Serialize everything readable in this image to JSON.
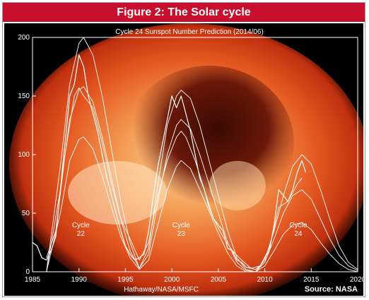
{
  "figure_title": "Figure 2: The Solar cycle",
  "source": "Source: NASA",
  "credit": "Hathaway/NASA/MSFC",
  "chart_data": {
    "type": "line",
    "title": "Cycle 24 Sunspot Number Prediction (2014/06)",
    "xlabel": "",
    "ylabel": "",
    "xlim": [
      1985,
      2020
    ],
    "ylim": [
      0,
      200
    ],
    "x_ticks": [
      "1985",
      "1990",
      "1995",
      "2000",
      "2005",
      "2010",
      "2015",
      "2020"
    ],
    "y_ticks": [
      "0",
      "50",
      "100",
      "150",
      "200"
    ],
    "grid": false,
    "annotations": [
      {
        "text": "Cycle 22",
        "x": 1990.2,
        "y": 20
      },
      {
        "text": "Cycle 23",
        "x": 2001.0,
        "y": 20
      },
      {
        "text": "Cycle 24",
        "x": 2013.6,
        "y": 20
      }
    ],
    "background": "Sun X-ray image (orange/red)",
    "colors": {
      "lines": "#ffffff",
      "banner": "#c8102e",
      "sun": "#e8451a"
    },
    "series": [
      {
        "role": "observed monthly",
        "x": [
          1985.0,
          1985.5,
          1986.0,
          1986.5,
          1987.0,
          1987.5,
          1988.0,
          1988.5,
          1989.0,
          1989.5,
          1990.0,
          1990.5,
          1991.0,
          1991.5,
          1992.0,
          1992.5,
          1993.0,
          1993.5,
          1994.0,
          1994.5,
          1995.0,
          1995.5,
          1996.0,
          1996.5,
          1997.0,
          1997.5,
          1998.0,
          1998.5,
          1999.0,
          1999.5,
          2000.0,
          2000.5,
          2001.0,
          2001.5,
          2002.0,
          2002.5,
          2003.0,
          2003.5,
          2004.0,
          2004.5,
          2005.0,
          2005.5,
          2006.0,
          2006.5,
          2007.0,
          2007.5,
          2008.0,
          2008.5,
          2009.0,
          2009.5,
          2010.0,
          2010.5,
          2011.0,
          2011.5,
          2012.0,
          2012.5,
          2013.0,
          2013.5,
          2014.0,
          2014.4
        ],
        "values": [
          25,
          22,
          12,
          10,
          18,
          30,
          70,
          110,
          150,
          160,
          185,
          175,
          150,
          135,
          120,
          100,
          80,
          65,
          50,
          35,
          22,
          15,
          10,
          12,
          15,
          35,
          65,
          90,
          110,
          130,
          150,
          140,
          150,
          135,
          120,
          100,
          80,
          70,
          55,
          45,
          40,
          35,
          20,
          18,
          10,
          8,
          4,
          3,
          2,
          5,
          12,
          18,
          40,
          70,
          65,
          60,
          70,
          85,
          95,
          85
        ]
      },
      {
        "role": "smoothed",
        "x": [
          1986.5,
          1987.5,
          1988.5,
          1989.5,
          1990.0,
          1990.5,
          1991.5,
          1992.5,
          1993.5,
          1994.5,
          1995.5,
          1996.5,
          1997.5,
          1998.5,
          1999.5,
          2000.5,
          2001.0,
          2001.5,
          2002.5,
          2003.5,
          2004.5,
          2005.5,
          2006.5,
          2007.5,
          2008.5,
          2009.5,
          2010.5,
          2011.5,
          2012.5,
          2013.5,
          2014.0
        ],
        "values": [
          12,
          35,
          100,
          150,
          157,
          150,
          140,
          110,
          75,
          45,
          28,
          10,
          25,
          65,
          95,
          115,
          120,
          115,
          95,
          70,
          45,
          30,
          18,
          10,
          3,
          5,
          20,
          55,
          60,
          75,
          80
        ]
      },
      {
        "role": "prediction upper",
        "x": [
          1986.5,
          1988.0,
          1989.0,
          1990.0,
          1990.5,
          1991.5,
          1992.5,
          1993.5,
          1994.5,
          1995.5,
          1996.5,
          1997.5,
          1998.5,
          1999.5,
          2000.5,
          2001.0,
          2002.0,
          2003.0,
          2004.0,
          2005.0,
          2006.0,
          2007.0,
          2008.0,
          2009.0,
          2010.0,
          2011.0,
          2012.0,
          2013.0,
          2014.0,
          2015.0,
          2016.0,
          2017.0,
          2018.0,
          2019.0,
          2020.0
        ],
        "values": [
          0,
          90,
          160,
          195,
          200,
          185,
          150,
          105,
          60,
          25,
          3,
          20,
          75,
          125,
          150,
          155,
          148,
          125,
          95,
          65,
          35,
          12,
          2,
          0,
          10,
          35,
          65,
          90,
          100,
          92,
          70,
          45,
          22,
          8,
          2
        ]
      },
      {
        "role": "prediction middle",
        "x": [
          1986.5,
          1988.0,
          1989.0,
          1990.0,
          1990.5,
          1991.5,
          1992.5,
          1993.5,
          1994.5,
          1995.5,
          1996.5,
          1997.5,
          1998.5,
          1999.5,
          2000.5,
          2001.0,
          2002.0,
          2003.0,
          2004.0,
          2005.0,
          2006.0,
          2007.0,
          2008.0,
          2009.0,
          2010.0,
          2011.0,
          2012.0,
          2013.0,
          2014.0,
          2015.0,
          2016.0,
          2017.0,
          2018.0,
          2019.0,
          2020.0
        ],
        "values": [
          0,
          70,
          130,
          155,
          158,
          145,
          115,
          80,
          45,
          18,
          3,
          15,
          60,
          100,
          125,
          130,
          122,
          100,
          75,
          50,
          25,
          8,
          1,
          0,
          8,
          28,
          50,
          65,
          70,
          62,
          45,
          28,
          14,
          5,
          1
        ]
      },
      {
        "role": "prediction lower",
        "x": [
          1986.5,
          1988.0,
          1989.0,
          1990.0,
          1990.5,
          1991.5,
          1992.5,
          1993.5,
          1994.5,
          1995.5,
          1996.5,
          1997.5,
          1998.5,
          1999.5,
          2000.5,
          2001.0,
          2002.0,
          2003.0,
          2004.0,
          2005.0,
          2006.0,
          2007.0,
          2008.0,
          2009.0,
          2010.0,
          2011.0,
          2012.0,
          2013.0,
          2014.0,
          2015.0,
          2016.0,
          2017.0,
          2018.0,
          2019.0,
          2020.0
        ],
        "values": [
          0,
          50,
          95,
          113,
          115,
          105,
          82,
          55,
          30,
          12,
          2,
          10,
          40,
          70,
          90,
          95,
          88,
          70,
          52,
          33,
          16,
          5,
          0,
          0,
          5,
          18,
          32,
          40,
          42,
          36,
          25,
          15,
          7,
          2,
          0
        ]
      }
    ]
  }
}
